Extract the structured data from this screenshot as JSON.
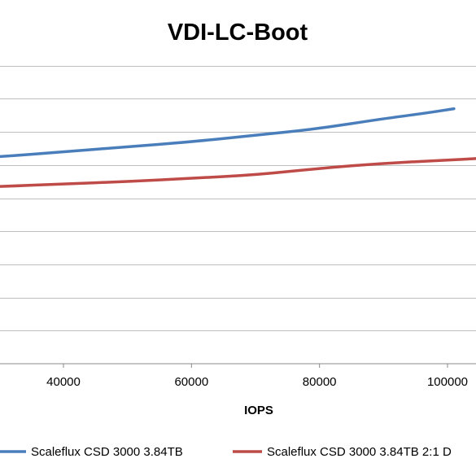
{
  "chart_data": {
    "type": "line",
    "title": "VDI-LC-Boot",
    "xlabel": "IOPS",
    "ylabel": "",
    "xlim": [
      21000,
      105000
    ],
    "ylim": [
      0,
      1.0
    ],
    "x_ticks": [
      40000,
      60000,
      80000,
      100000
    ],
    "x_tick_labels": [
      "40000",
      "60000",
      "80000",
      "100000"
    ],
    "y_gridlines": [
      0.1,
      0.2,
      0.3,
      0.4,
      0.5,
      0.6,
      0.7,
      0.8,
      0.9
    ],
    "grid": true,
    "legend_position": "bottom",
    "series": [
      {
        "name": "Scaleflux CSD 3000 3.84TB",
        "color": "#4a7ebb",
        "x": [
          21000,
          30000,
          40000,
          50000,
          60000,
          70000,
          80000,
          90000,
          96000,
          101000
        ],
        "y": [
          0.615,
          0.625,
          0.64,
          0.655,
          0.67,
          0.69,
          0.71,
          0.74,
          0.755,
          0.77
        ]
      },
      {
        "name": "Scaleflux CSD 3000 3.84TB 2:1 D",
        "color": "#be4b48",
        "x": [
          21000,
          30000,
          40000,
          50000,
          60000,
          70000,
          80000,
          90000,
          100000,
          105000
        ],
        "y": [
          0.53,
          0.535,
          0.543,
          0.55,
          0.56,
          0.57,
          0.59,
          0.605,
          0.615,
          0.62
        ]
      }
    ]
  }
}
